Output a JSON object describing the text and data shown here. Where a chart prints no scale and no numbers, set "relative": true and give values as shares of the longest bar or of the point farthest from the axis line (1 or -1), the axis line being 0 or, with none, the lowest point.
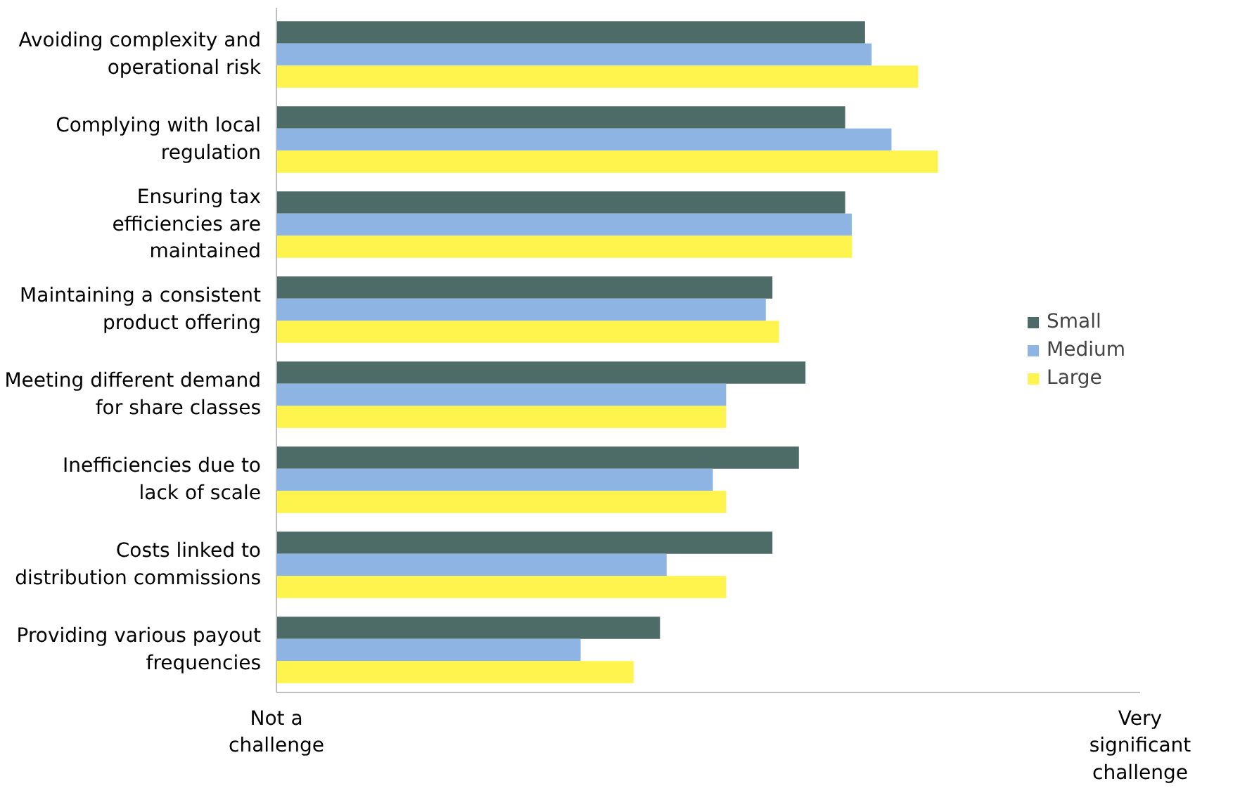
{
  "chart_data": {
    "type": "bar",
    "orientation": "horizontal",
    "relative": true,
    "categories": [
      "Avoiding complexity and operational risk",
      "Complying with local regulation",
      "Ensuring tax efficiencies are maintained",
      "Maintaining a consistent product offering",
      "Meeting different demand for share classes",
      "Inefficiencies due to lack of scale",
      "Costs linked to distribution commissions",
      "Providing various payout frequencies"
    ],
    "series": [
      {
        "name": "Small",
        "color": "#4d6b67",
        "values": [
          0.89,
          0.86,
          0.86,
          0.75,
          0.8,
          0.79,
          0.75,
          0.58
        ]
      },
      {
        "name": "Medium",
        "color": "#8db4e2",
        "values": [
          0.9,
          0.93,
          0.87,
          0.74,
          0.68,
          0.66,
          0.59,
          0.46
        ]
      },
      {
        "name": "Large",
        "color": "#fff34d",
        "values": [
          0.97,
          1,
          0.87,
          0.76,
          0.68,
          0.68,
          0.68,
          0.54
        ]
      }
    ],
    "annotations": [
      "Not a challenge",
      "Very significant challenge"
    ],
    "grid": false,
    "legend": "right"
  }
}
